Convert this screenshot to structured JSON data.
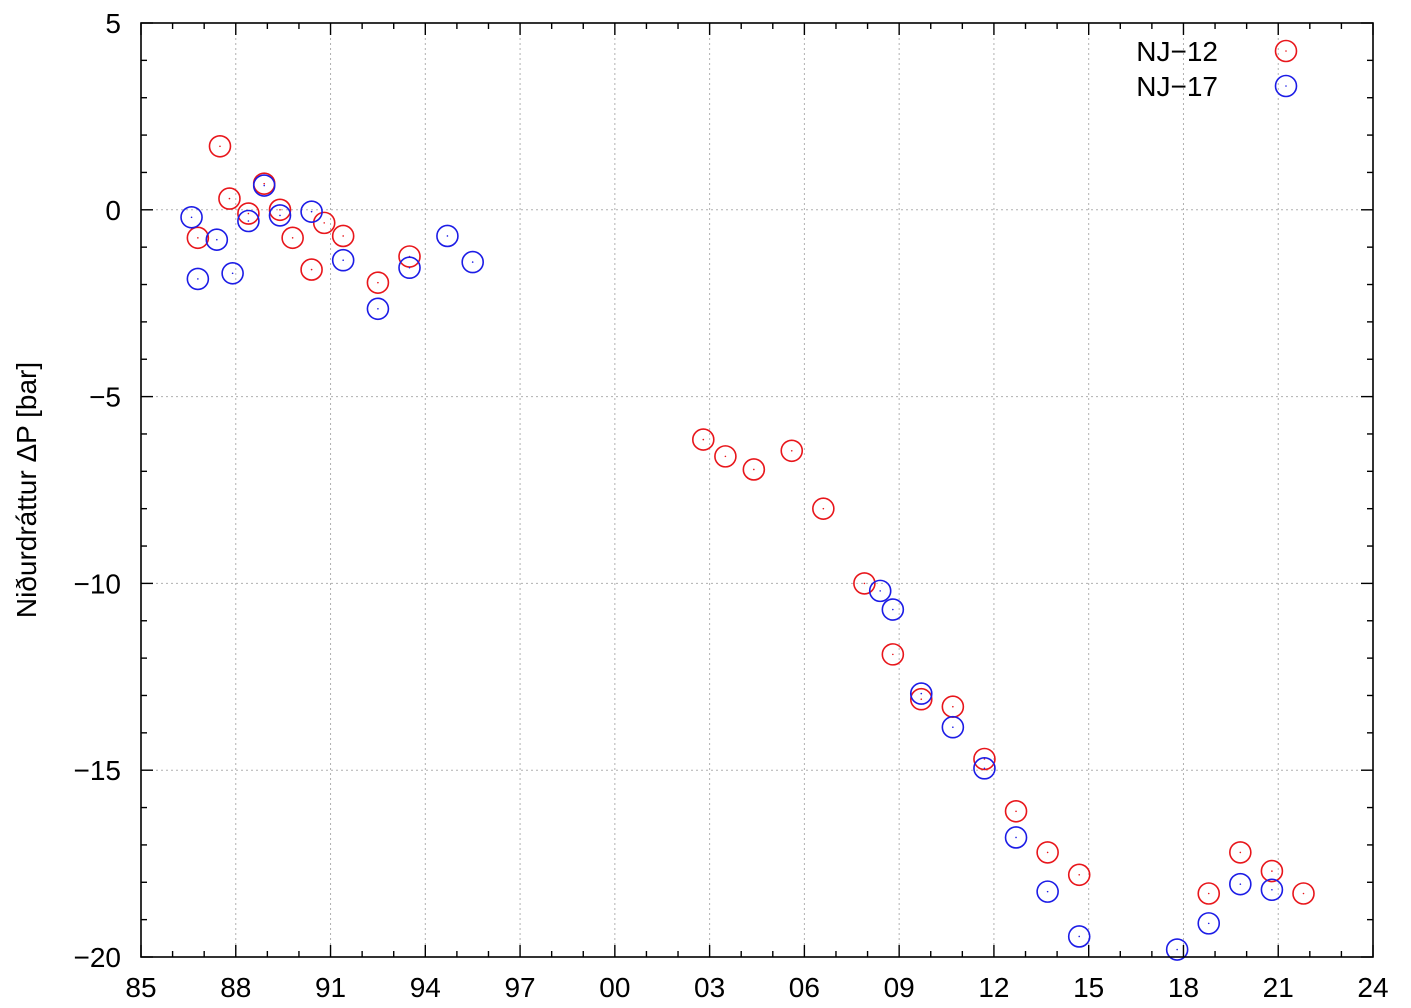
{
  "chart_data": {
    "type": "scatter",
    "ylabel": "Niðurdráttur ΔP [bar]",
    "xlabel": "",
    "xlim": [
      1985,
      2024
    ],
    "ylim": [
      -20,
      5
    ],
    "xticks": [
      1985,
      1988,
      1991,
      1994,
      1997,
      2000,
      2003,
      2006,
      2009,
      2012,
      2015,
      2018,
      2021,
      2024
    ],
    "xtick_labels": [
      "85",
      "88",
      "91",
      "94",
      "97",
      "00",
      "03",
      "06",
      "09",
      "12",
      "15",
      "18",
      "21",
      "24"
    ],
    "yticks": [
      -20,
      -15,
      -10,
      -5,
      0,
      5
    ],
    "ytick_labels": [
      "−20",
      "−15",
      "−10",
      "−5",
      "0",
      "5"
    ],
    "grid": true,
    "legend_position": "top-right",
    "series": [
      {
        "name": "NJ−12",
        "color": "#e8161b",
        "x": [
          1986.8,
          1987.5,
          1987.8,
          1988.4,
          1988.9,
          1989.4,
          1989.8,
          1990.4,
          1990.8,
          1991.4,
          1992.5,
          1993.5,
          2002.8,
          2003.5,
          2004.4,
          2005.6,
          2006.6,
          2007.9,
          2008.8,
          2009.7,
          2010.7,
          2011.7,
          2012.7,
          2013.7,
          2014.7,
          2018.8,
          2019.8,
          2020.8,
          2021.8
        ],
        "y": [
          -0.75,
          1.7,
          0.3,
          -0.1,
          0.7,
          0.0,
          -0.75,
          -1.6,
          -0.35,
          -0.7,
          -1.95,
          -1.25,
          -6.15,
          -6.6,
          -6.95,
          -6.45,
          -8.0,
          -10.0,
          -11.9,
          -13.1,
          -13.3,
          -14.7,
          -16.1,
          -17.2,
          -17.8,
          -18.3,
          -17.2,
          -17.7,
          -18.3
        ]
      },
      {
        "name": "NJ−17",
        "color": "#1c1ce6",
        "x": [
          1986.6,
          1986.8,
          1987.4,
          1987.9,
          1988.4,
          1988.9,
          1989.4,
          1990.4,
          1991.4,
          1992.5,
          1993.5,
          1994.7,
          1995.5,
          2008.4,
          2008.8,
          2009.7,
          2010.7,
          2011.7,
          2012.7,
          2013.7,
          2014.7,
          2017.8,
          2018.8,
          2019.8,
          2020.8
        ],
        "y": [
          -0.2,
          -1.85,
          -0.8,
          -1.7,
          -0.3,
          0.65,
          -0.15,
          -0.05,
          -1.35,
          -2.65,
          -1.55,
          -0.7,
          -1.4,
          -10.2,
          -10.7,
          -12.95,
          -13.85,
          -14.95,
          -16.8,
          -18.25,
          -19.45,
          -19.8,
          -19.1,
          -18.05,
          -18.2
        ]
      }
    ]
  }
}
